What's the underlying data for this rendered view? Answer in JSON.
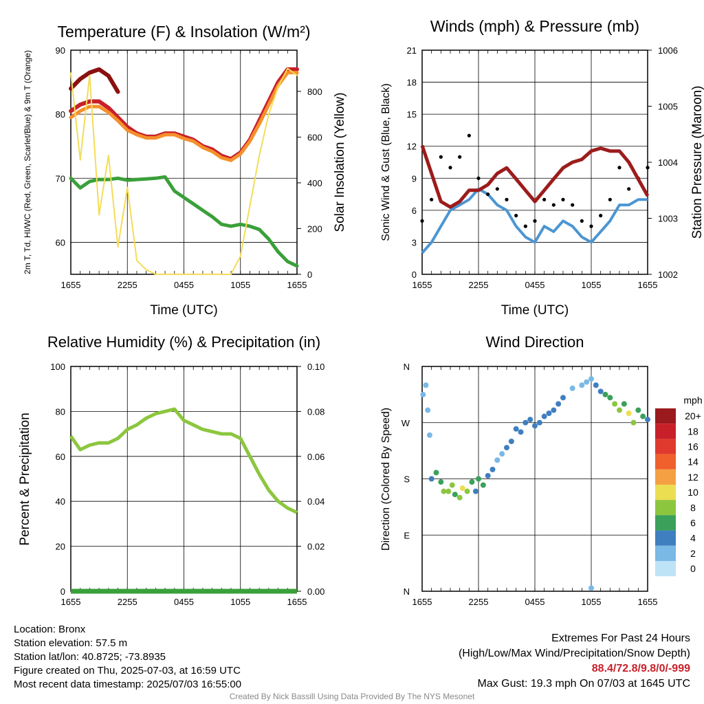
{
  "colors": {
    "red": "#c8202a",
    "scarlet": "#8b1010",
    "orange": "#f5902c",
    "green": "#3aa03a",
    "yellow": "#f4dc58",
    "blue": "#4c96d2",
    "black": "#000000",
    "maroon": "#9c1c1c",
    "rh": "#8cc63f",
    "precip": "#3aa03a"
  },
  "chart_data": [
    {
      "type": "line",
      "title": "Temperature (F) & Insolation (W/m²)",
      "xlabel": "Time (UTC)",
      "ylabel": "2m T, Td, HI/WC (Red, Green, Scarlet/Blue) & 9m T (Orange)",
      "y2label": "Solar Insolation (Yellow)",
      "x_ticks": [
        "1655",
        "2255",
        "0455",
        "1055",
        "1655"
      ],
      "ylim": [
        55,
        90
      ],
      "y_ticks": [
        "60",
        "70",
        "80",
        "90"
      ],
      "y2lim": [
        0,
        980
      ],
      "y2_ticks": [
        "0",
        "200",
        "400",
        "600",
        "800"
      ],
      "hours": [
        0,
        1,
        2,
        3,
        4,
        5,
        6,
        7,
        8,
        9,
        10,
        11,
        12,
        13,
        14,
        15,
        16,
        17,
        18,
        19,
        20,
        21,
        22,
        23,
        24
      ],
      "series": [
        {
          "name": "2m T",
          "color": "red",
          "axis": "left",
          "values": [
            80.5,
            81.5,
            82,
            82,
            81,
            79.5,
            78,
            77,
            76.5,
            76.5,
            77,
            77,
            76.5,
            76,
            75,
            74.5,
            73.5,
            73,
            74,
            76,
            79,
            82,
            85,
            87,
            87
          ]
        },
        {
          "name": "9m T",
          "color": "orange",
          "axis": "left",
          "values": [
            79.5,
            80.5,
            81.2,
            81.2,
            80.3,
            79,
            77.5,
            76.8,
            76.3,
            76.3,
            76.8,
            76.8,
            76.2,
            75.8,
            74.8,
            74.2,
            73.2,
            72.8,
            73.8,
            75.8,
            78.5,
            81.5,
            84.5,
            86.5,
            86.5
          ]
        },
        {
          "name": "HI",
          "color": "scarlet",
          "axis": "left",
          "values": [
            84,
            85.5,
            86.5,
            87,
            86,
            83.5,
            null,
            null,
            null,
            null,
            null,
            null,
            null,
            null,
            null,
            null,
            null,
            null,
            null,
            null,
            null,
            null,
            null,
            null,
            null
          ]
        },
        {
          "name": "Td",
          "color": "green",
          "axis": "left",
          "values": [
            70,
            68.5,
            69.5,
            69.8,
            69.8,
            70,
            69.7,
            69.8,
            69.9,
            70,
            70.2,
            68,
            67,
            66,
            65,
            64,
            62.8,
            62.5,
            62.8,
            62.5,
            62,
            60.5,
            58.5,
            57,
            56.3
          ]
        },
        {
          "name": "Solar",
          "color": "yellow",
          "axis": "right",
          "values": [
            880,
            500,
            870,
            260,
            520,
            120,
            380,
            60,
            20,
            0,
            0,
            0,
            0,
            0,
            0,
            0,
            0,
            0,
            80,
            300,
            520,
            700,
            820,
            900,
            870
          ]
        }
      ]
    },
    {
      "type": "line",
      "title": "Winds (mph) & Pressure (mb)",
      "xlabel": "Time (UTC)",
      "ylabel": "Sonic Wind & Gust (Blue, Black)",
      "y2label": "Station Pressure (Maroon)",
      "x_ticks": [
        "1655",
        "2255",
        "0455",
        "1055",
        "1655"
      ],
      "ylim": [
        0,
        21
      ],
      "y_ticks": [
        "0",
        "3",
        "6",
        "9",
        "12",
        "15",
        "18",
        "21"
      ],
      "y2lim": [
        1002,
        1006
      ],
      "y2_ticks": [
        "1002",
        "1003",
        "1004",
        "1005",
        "1006"
      ],
      "hours": [
        0,
        1,
        2,
        3,
        4,
        5,
        6,
        7,
        8,
        9,
        10,
        11,
        12,
        13,
        14,
        15,
        16,
        17,
        18,
        19,
        20,
        21,
        22,
        23,
        24
      ],
      "series": [
        {
          "name": "Wind",
          "color": "blue",
          "axis": "left",
          "values": [
            2,
            3,
            4.5,
            6,
            6.5,
            7,
            8,
            7.5,
            6.5,
            6,
            4.5,
            3.5,
            3,
            4.5,
            4,
            5,
            4.5,
            3.5,
            3,
            4,
            5,
            6.5,
            6.5,
            7,
            7
          ]
        },
        {
          "name": "Gust",
          "color": "black",
          "axis": "left",
          "values": [
            5,
            7,
            11,
            10,
            11,
            13,
            9,
            7.5,
            8,
            7,
            5.5,
            4.5,
            5,
            7,
            6.5,
            7,
            6.5,
            5,
            4.5,
            5.5,
            7,
            10,
            8,
            9,
            10
          ]
        },
        {
          "name": "Pressure",
          "color": "maroon",
          "axis": "right",
          "values": [
            1004.3,
            1003.8,
            1003.3,
            1003.2,
            1003.3,
            1003.5,
            1003.5,
            1003.6,
            1003.8,
            1003.9,
            1003.7,
            1003.5,
            1003.3,
            1003.5,
            1003.7,
            1003.9,
            1004.0,
            1004.05,
            1004.2,
            1004.25,
            1004.2,
            1004.2,
            1004.0,
            1003.7,
            1003.4
          ]
        }
      ]
    },
    {
      "type": "line",
      "title": "Relative Humidity (%) & Precipitation (in)",
      "xlabel": "",
      "ylabel": "Percent & Precipitation",
      "x_ticks": [
        "1655",
        "2255",
        "0455",
        "1055",
        "1655"
      ],
      "ylim": [
        0,
        100
      ],
      "y_ticks": [
        "0",
        "20",
        "40",
        "60",
        "80",
        "100"
      ],
      "y2lim": [
        0,
        0.1
      ],
      "y2_ticks": [
        "0.00",
        "0.02",
        "0.04",
        "0.06",
        "0.08",
        "0.10"
      ],
      "hours": [
        0,
        1,
        2,
        3,
        4,
        5,
        6,
        7,
        8,
        9,
        10,
        11,
        12,
        13,
        14,
        15,
        16,
        17,
        18,
        19,
        20,
        21,
        22,
        23,
        24
      ],
      "series": [
        {
          "name": "RH",
          "color": "rh",
          "axis": "left",
          "values": [
            69,
            63,
            65,
            66,
            66,
            68,
            72,
            74,
            77,
            79,
            80,
            81,
            76,
            74,
            72,
            71,
            70,
            70,
            68,
            60,
            52,
            45,
            40,
            37,
            35
          ]
        },
        {
          "name": "Precipitation",
          "color": "precip",
          "axis": "right",
          "values": [
            0,
            0,
            0,
            0,
            0,
            0,
            0,
            0,
            0,
            0,
            0,
            0,
            0,
            0,
            0,
            0,
            0,
            0,
            0,
            0,
            0,
            0,
            0,
            0,
            0
          ]
        }
      ]
    },
    {
      "type": "scatter",
      "title": "Wind Direction",
      "xlabel": "",
      "ylabel": "Direction (Colored By Speed)",
      "x_ticks": [
        "1655",
        "2255",
        "0455",
        "1055",
        "1655"
      ],
      "y_ticks": [
        "N",
        "E",
        "S",
        "W",
        "N"
      ],
      "ylim": [
        0,
        360
      ],
      "colorbar_title": "mph",
      "colorbar_labels": [
        "20+",
        "18",
        "16",
        "14",
        "12",
        "10",
        "8",
        "6",
        "4",
        "2",
        "0"
      ],
      "colorbar_colors": [
        "#9a1a1e",
        "#c8202a",
        "#e03a2e",
        "#f0602c",
        "#f5a043",
        "#ecde52",
        "#8cc63f",
        "#3aa05a",
        "#3f7fc0",
        "#7ab8e6",
        "#bfe3f6"
      ],
      "points": [
        [
          0.1,
          315,
          2
        ],
        [
          0.4,
          330,
          1
        ],
        [
          0.6,
          290,
          1
        ],
        [
          0.8,
          250,
          2
        ],
        [
          1,
          180,
          3
        ],
        [
          1.5,
          190,
          5
        ],
        [
          2,
          175,
          6
        ],
        [
          2.3,
          160,
          7
        ],
        [
          2.8,
          160,
          8
        ],
        [
          3.2,
          170,
          7
        ],
        [
          3.5,
          155,
          6
        ],
        [
          4,
          150,
          8
        ],
        [
          4.3,
          165,
          9
        ],
        [
          4.8,
          160,
          7
        ],
        [
          5.3,
          175,
          5
        ],
        [
          5.7,
          160,
          4
        ],
        [
          6,
          180,
          6
        ],
        [
          6.5,
          170,
          5
        ],
        [
          7,
          185,
          4
        ],
        [
          7.5,
          195,
          3
        ],
        [
          8,
          210,
          2
        ],
        [
          8.5,
          220,
          2
        ],
        [
          9,
          230,
          4
        ],
        [
          9.5,
          240,
          3
        ],
        [
          10,
          260,
          4
        ],
        [
          10.5,
          255,
          3
        ],
        [
          11,
          270,
          4
        ],
        [
          11.5,
          275,
          3
        ],
        [
          12,
          265,
          4
        ],
        [
          12.5,
          270,
          4
        ],
        [
          13,
          280,
          3
        ],
        [
          13.5,
          285,
          3
        ],
        [
          14,
          290,
          4
        ],
        [
          14.5,
          300,
          3
        ],
        [
          15,
          310,
          3
        ],
        [
          16,
          325,
          2
        ],
        [
          17,
          330,
          2
        ],
        [
          17.5,
          335,
          1
        ],
        [
          18,
          340,
          2
        ],
        [
          18.5,
          330,
          3
        ],
        [
          19,
          320,
          3
        ],
        [
          19.5,
          315,
          5
        ],
        [
          20,
          310,
          6
        ],
        [
          20.5,
          300,
          7
        ],
        [
          21,
          290,
          8
        ],
        [
          21.5,
          300,
          6
        ],
        [
          22,
          285,
          10
        ],
        [
          22.5,
          270,
          8
        ],
        [
          23,
          290,
          5
        ],
        [
          23.5,
          280,
          6
        ],
        [
          24,
          275,
          4
        ],
        [
          18,
          5,
          2
        ]
      ]
    }
  ],
  "info": {
    "location": "Location: Bronx",
    "elevation": "Station elevation: 57.5 m",
    "latlon": "Station lat/lon: 40.8725; -73.8935",
    "created": "Figure created on Thu, 2025-07-03, at 16:59 UTC",
    "recent": "Most recent data timestamp: 2025/07/03 16:55:00",
    "extremes_title": "Extremes For Past 24 Hours",
    "extremes_sub": "(High/Low/Max Wind/Precipitation/Snow Depth)",
    "extremes_values": "88.4/72.8/9.8/0/-999",
    "max_gust": "Max Gust: 19.3 mph On 07/03 at 1645 UTC",
    "credit": "Created By Nick Bassill Using Data Provided By The NYS Mesonet"
  }
}
